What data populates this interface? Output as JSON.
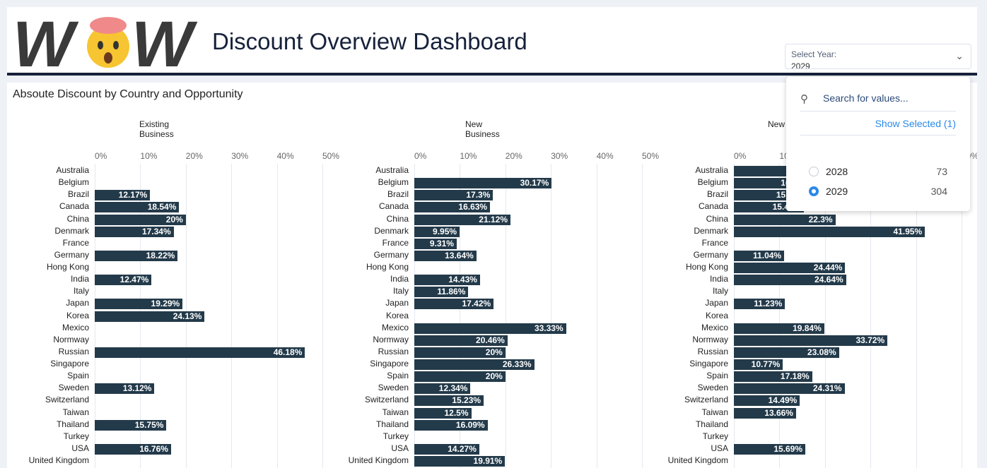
{
  "header": {
    "logo_text": "WOW",
    "title": "Discount Overview Dashboard"
  },
  "year_select": {
    "label": "Select Year:",
    "value": "2029"
  },
  "popup": {
    "search_placeholder": "Search for values...",
    "show_selected": "Show Selected (1)",
    "options": [
      {
        "label": "2028",
        "count": "73",
        "selected": false
      },
      {
        "label": "2029",
        "count": "304",
        "selected": true
      }
    ]
  },
  "main_title": "Absoute Discount by Country and Opportunity",
  "colors": {
    "bar": "#233a4a",
    "accent": "#2a8ae8",
    "navy": "#16213a"
  },
  "chart_data": {
    "type": "bar",
    "orientation": "horizontal",
    "xlim": [
      0,
      50
    ],
    "ticks": [
      "0%",
      "10%",
      "20%",
      "30%",
      "40%",
      "50%"
    ],
    "categories": [
      "Australia",
      "Belgium",
      "Brazil",
      "Canada",
      "China",
      "Denmark",
      "France",
      "Germany",
      "Hong Kong",
      "India",
      "Italy",
      "Japan",
      "Korea",
      "Mexico",
      "Normway",
      "Russian",
      "Singapore",
      "Spain",
      "Sweden",
      "Switzerland",
      "Taiwan",
      "Thailand",
      "Turkey",
      "USA",
      "United Kingdom"
    ],
    "panels": [
      {
        "title": "Existing Business",
        "values": [
          null,
          null,
          12.17,
          18.54,
          20,
          17.34,
          null,
          18.22,
          null,
          12.47,
          null,
          19.29,
          24.13,
          null,
          null,
          46.18,
          null,
          null,
          13.12,
          null,
          null,
          15.75,
          null,
          16.76,
          null
        ]
      },
      {
        "title": "New Business",
        "values": [
          null,
          30.17,
          17.3,
          16.63,
          21.12,
          9.95,
          9.31,
          13.64,
          null,
          14.43,
          11.86,
          17.42,
          null,
          33.33,
          20.46,
          20,
          26.33,
          20,
          12.34,
          15.23,
          12.5,
          16.09,
          null,
          14.27,
          19.91
        ]
      },
      {
        "title": "New",
        "values": [
          18,
          16.2,
          15.2,
          15.42,
          22.3,
          41.95,
          null,
          11.04,
          24.44,
          24.64,
          null,
          11.23,
          null,
          19.84,
          33.72,
          23.08,
          10.77,
          17.18,
          24.31,
          14.49,
          13.66,
          null,
          null,
          15.69,
          null
        ]
      }
    ]
  }
}
